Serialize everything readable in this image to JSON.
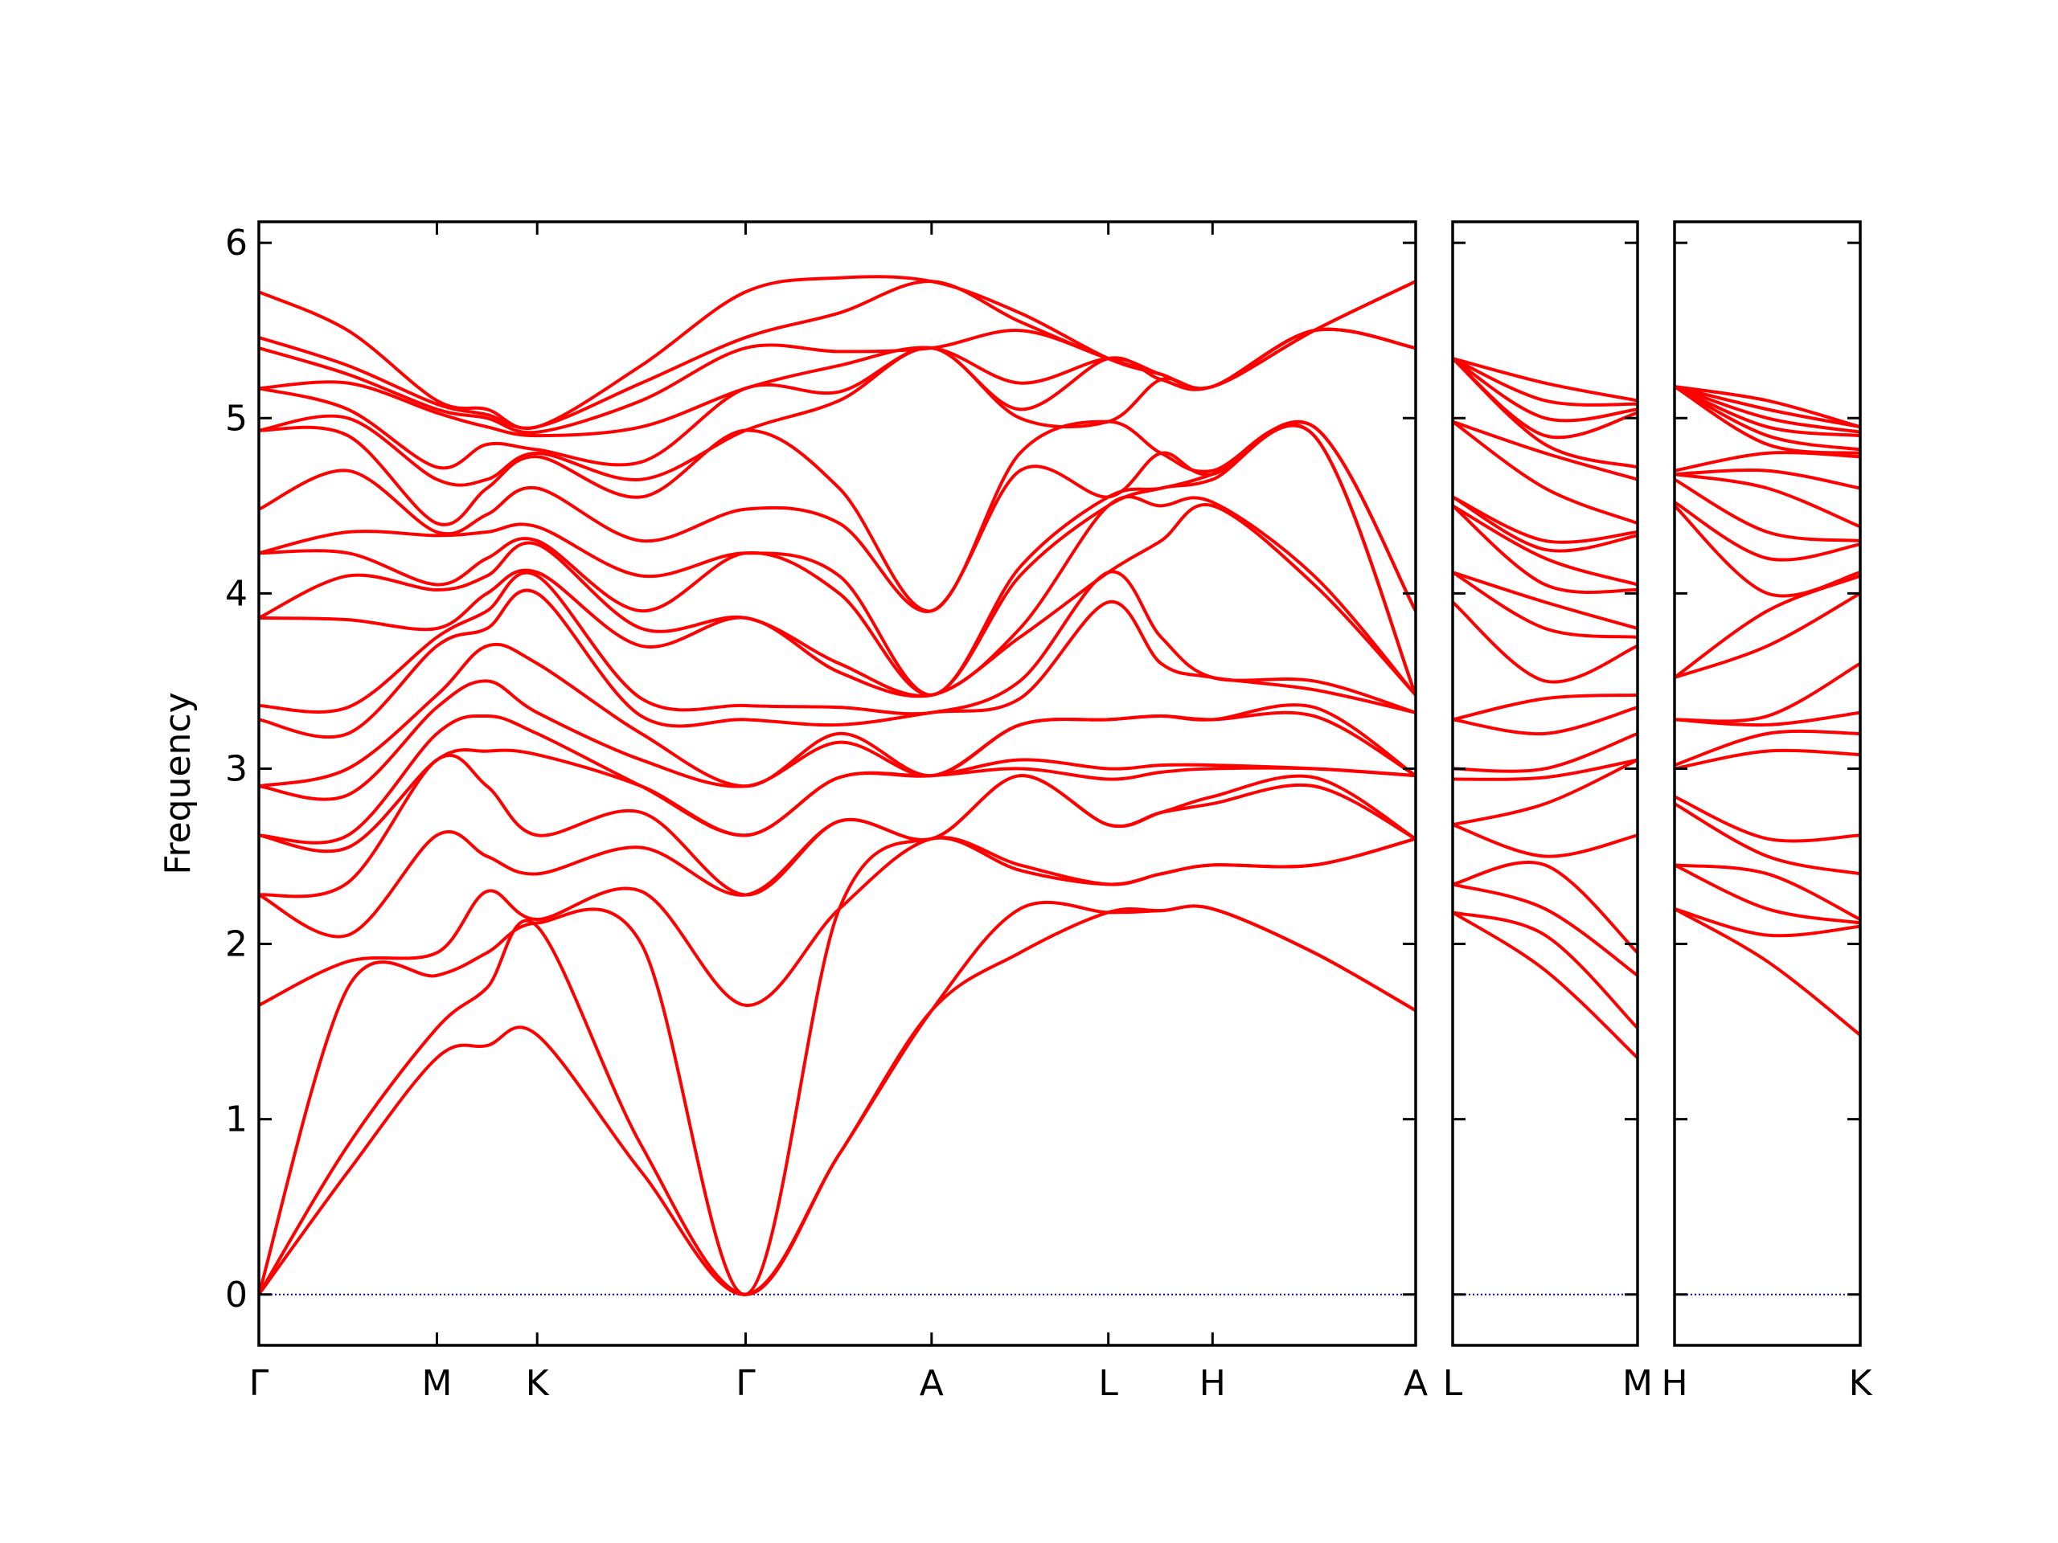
{
  "chart_data": [
    {
      "type": "line",
      "ylabel": "Frequency",
      "color": "#ff0000",
      "zero_line_color": "#0000cc",
      "x": [
        0,
        0.675,
        1.35,
        1.73,
        2.11,
        2.9,
        3.69,
        4.4,
        5.1,
        5.77,
        6.44,
        6.84,
        7.23,
        8.0,
        8.77
      ],
      "xlim": [
        0,
        8.77
      ],
      "xticks": [
        {
          "value": 0,
          "label": "Γ"
        },
        {
          "value": 1.35,
          "label": "M"
        },
        {
          "value": 2.11,
          "label": "K"
        },
        {
          "value": 3.69,
          "label": "Γ"
        },
        {
          "value": 5.1,
          "label": "A"
        },
        {
          "value": 6.44,
          "label": "L"
        },
        {
          "value": 7.23,
          "label": "H"
        },
        {
          "value": 8.77,
          "label": "A"
        }
      ],
      "ylim": [
        -0.29,
        6.12
      ],
      "yticks": [
        0,
        1,
        2,
        3,
        4,
        5,
        6
      ],
      "series": [
        {
          "values": [
            0,
            0.7,
            1.35,
            1.42,
            1.48,
            0.7,
            0,
            0.8,
            1.62,
            1.95,
            2.18,
            2.19,
            2.2,
            1.95,
            1.62
          ]
        },
        {
          "values": [
            0,
            0.85,
            1.52,
            1.75,
            2.1,
            0.85,
            0,
            0.8,
            1.62,
            2.2,
            2.18,
            2.19,
            2.2,
            1.95,
            1.62
          ]
        },
        {
          "values": [
            0,
            1.75,
            1.82,
            1.95,
            2.12,
            2.0,
            0,
            2.2,
            2.6,
            2.42,
            2.34,
            2.4,
            2.45,
            2.45,
            2.6
          ]
        },
        {
          "values": [
            1.65,
            1.9,
            1.95,
            2.3,
            2.14,
            2.3,
            1.65,
            2.2,
            2.6,
            2.45,
            2.34,
            2.4,
            2.45,
            2.45,
            2.6
          ]
        },
        {
          "values": [
            2.28,
            2.05,
            2.62,
            2.5,
            2.4,
            2.55,
            2.28,
            2.7,
            2.6,
            2.96,
            2.68,
            2.75,
            2.8,
            2.9,
            2.6
          ]
        },
        {
          "values": [
            2.28,
            2.35,
            3.05,
            2.9,
            2.62,
            2.75,
            2.28,
            2.7,
            2.6,
            2.96,
            2.68,
            2.75,
            2.84,
            2.95,
            2.6
          ]
        },
        {
          "values": [
            2.62,
            2.55,
            3.05,
            3.1,
            3.08,
            2.9,
            2.62,
            2.95,
            2.96,
            3.0,
            2.94,
            2.98,
            3.0,
            3.0,
            2.96
          ]
        },
        {
          "values": [
            2.62,
            2.62,
            3.2,
            3.3,
            3.2,
            2.9,
            2.62,
            2.95,
            2.96,
            3.05,
            3.0,
            3.02,
            3.02,
            3.0,
            2.96
          ]
        },
        {
          "values": [
            2.9,
            2.85,
            3.35,
            3.5,
            3.32,
            3.05,
            2.9,
            3.15,
            2.96,
            3.25,
            3.28,
            3.3,
            3.28,
            3.3,
            2.96
          ]
        },
        {
          "values": [
            2.9,
            3.0,
            3.42,
            3.7,
            3.6,
            3.2,
            2.9,
            3.2,
            2.96,
            3.25,
            3.28,
            3.3,
            3.28,
            3.35,
            2.96
          ]
        },
        {
          "values": [
            3.28,
            3.2,
            3.7,
            3.8,
            4.0,
            3.3,
            3.28,
            3.25,
            3.32,
            3.4,
            3.95,
            3.6,
            3.52,
            3.45,
            3.32
          ]
        },
        {
          "values": [
            3.36,
            3.35,
            3.75,
            3.9,
            4.1,
            3.4,
            3.36,
            3.35,
            3.32,
            3.5,
            4.12,
            3.75,
            3.52,
            3.5,
            3.32
          ]
        },
        {
          "values": [
            3.86,
            3.85,
            3.8,
            4.0,
            4.12,
            3.7,
            3.86,
            3.55,
            3.42,
            3.75,
            4.12,
            4.3,
            4.5,
            4.05,
            3.42
          ]
        },
        {
          "values": [
            3.86,
            4.1,
            4.02,
            4.1,
            4.28,
            3.8,
            3.86,
            3.6,
            3.42,
            3.8,
            4.5,
            4.5,
            4.52,
            4.1,
            3.42
          ]
        },
        {
          "values": [
            4.23,
            4.23,
            4.05,
            4.2,
            4.3,
            3.9,
            4.23,
            4.0,
            3.42,
            4.1,
            4.5,
            4.6,
            4.65,
            4.9,
            3.42
          ]
        },
        {
          "values": [
            4.23,
            4.35,
            4.33,
            4.35,
            4.38,
            4.1,
            4.23,
            4.1,
            3.42,
            4.15,
            4.55,
            4.6,
            4.68,
            4.9,
            3.42
          ]
        },
        {
          "values": [
            4.48,
            4.7,
            4.35,
            4.45,
            4.6,
            4.3,
            4.48,
            4.4,
            3.9,
            4.7,
            4.55,
            4.8,
            4.68,
            4.95,
            3.9
          ]
        },
        {
          "values": [
            4.93,
            4.9,
            4.4,
            4.6,
            4.78,
            4.55,
            4.93,
            4.6,
            3.9,
            4.8,
            4.98,
            4.8,
            4.7,
            4.95,
            3.9
          ]
        },
        {
          "values": [
            4.93,
            5.0,
            4.65,
            4.65,
            4.8,
            4.65,
            4.93,
            5.1,
            5.4,
            5.0,
            4.98,
            5.22,
            5.18,
            5.5,
            5.4
          ]
        },
        {
          "values": [
            5.17,
            5.05,
            4.72,
            4.85,
            4.82,
            4.75,
            5.17,
            5.15,
            5.4,
            5.05,
            5.34,
            5.22,
            5.18,
            5.5,
            5.4
          ]
        },
        {
          "values": [
            5.17,
            5.2,
            5.03,
            4.95,
            4.9,
            4.95,
            5.17,
            5.3,
            5.4,
            5.2,
            5.34,
            5.25,
            5.18,
            5.5,
            5.4
          ]
        },
        {
          "values": [
            5.4,
            5.25,
            5.05,
            5.0,
            4.92,
            5.1,
            5.4,
            5.38,
            5.4,
            5.5,
            5.34,
            5.25,
            5.18,
            5.5,
            5.4
          ]
        },
        {
          "values": [
            5.46,
            5.3,
            5.08,
            5.02,
            4.95,
            5.2,
            5.46,
            5.6,
            5.78,
            5.55,
            5.34,
            5.25,
            5.18,
            5.5,
            5.78
          ]
        },
        {
          "values": [
            5.72,
            5.5,
            5.1,
            5.05,
            4.95,
            5.3,
            5.72,
            5.8,
            5.78,
            5.6,
            5.34,
            5.25,
            5.18,
            5.5,
            5.78
          ]
        }
      ]
    },
    {
      "type": "line",
      "color": "#ff0000",
      "zero_line_color": "#0000cc",
      "x": [
        0,
        0.7,
        1.4
      ],
      "xlim": [
        0,
        1.4
      ],
      "xticks": [
        {
          "value": 0,
          "label": "L"
        },
        {
          "value": 1.4,
          "label": "M"
        }
      ],
      "ylim": [
        -0.29,
        6.12
      ],
      "yticks": [
        0,
        1,
        2,
        3,
        4,
        5,
        6
      ],
      "series": [
        {
          "values": [
            2.18,
            1.85,
            1.35
          ]
        },
        {
          "values": [
            2.18,
            2.05,
            1.52
          ]
        },
        {
          "values": [
            2.34,
            2.2,
            1.82
          ]
        },
        {
          "values": [
            2.34,
            2.45,
            1.95
          ]
        },
        {
          "values": [
            2.68,
            2.5,
            2.62
          ]
        },
        {
          "values": [
            2.68,
            2.8,
            3.05
          ]
        },
        {
          "values": [
            2.94,
            2.95,
            3.05
          ]
        },
        {
          "values": [
            3.0,
            3.0,
            3.2
          ]
        },
        {
          "values": [
            3.28,
            3.2,
            3.35
          ]
        },
        {
          "values": [
            3.28,
            3.4,
            3.42
          ]
        },
        {
          "values": [
            3.95,
            3.5,
            3.7
          ]
        },
        {
          "values": [
            4.12,
            3.8,
            3.75
          ]
        },
        {
          "values": [
            4.12,
            3.95,
            3.8
          ]
        },
        {
          "values": [
            4.5,
            4.05,
            4.02
          ]
        },
        {
          "values": [
            4.5,
            4.2,
            4.05
          ]
        },
        {
          "values": [
            4.55,
            4.25,
            4.33
          ]
        },
        {
          "values": [
            4.55,
            4.3,
            4.35
          ]
        },
        {
          "values": [
            4.98,
            4.6,
            4.4
          ]
        },
        {
          "values": [
            4.98,
            4.8,
            4.65
          ]
        },
        {
          "values": [
            5.34,
            4.85,
            4.72
          ]
        },
        {
          "values": [
            5.34,
            4.9,
            5.03
          ]
        },
        {
          "values": [
            5.34,
            5.0,
            5.05
          ]
        },
        {
          "values": [
            5.34,
            5.1,
            5.08
          ]
        },
        {
          "values": [
            5.34,
            5.2,
            5.1
          ]
        }
      ]
    },
    {
      "type": "line",
      "color": "#ff0000",
      "zero_line_color": "#0000cc",
      "x": [
        0,
        0.705,
        1.41
      ],
      "xlim": [
        0,
        1.41
      ],
      "xticks": [
        {
          "value": 0,
          "label": "H"
        },
        {
          "value": 1.41,
          "label": "K"
        }
      ],
      "ylim": [
        -0.29,
        6.12
      ],
      "yticks": [
        0,
        1,
        2,
        3,
        4,
        5,
        6
      ],
      "series": [
        {
          "values": [
            2.2,
            1.9,
            1.48
          ]
        },
        {
          "values": [
            2.2,
            2.05,
            2.1
          ]
        },
        {
          "values": [
            2.45,
            2.2,
            2.12
          ]
        },
        {
          "values": [
            2.45,
            2.4,
            2.14
          ]
        },
        {
          "values": [
            2.8,
            2.5,
            2.4
          ]
        },
        {
          "values": [
            2.84,
            2.6,
            2.62
          ]
        },
        {
          "values": [
            3.0,
            3.1,
            3.08
          ]
        },
        {
          "values": [
            3.02,
            3.2,
            3.2
          ]
        },
        {
          "values": [
            3.28,
            3.25,
            3.32
          ]
        },
        {
          "values": [
            3.28,
            3.3,
            3.6
          ]
        },
        {
          "values": [
            3.52,
            3.7,
            4.0
          ]
        },
        {
          "values": [
            3.52,
            3.9,
            4.1
          ]
        },
        {
          "values": [
            4.5,
            4.0,
            4.12
          ]
        },
        {
          "values": [
            4.52,
            4.2,
            4.28
          ]
        },
        {
          "values": [
            4.65,
            4.35,
            4.3
          ]
        },
        {
          "values": [
            4.68,
            4.6,
            4.38
          ]
        },
        {
          "values": [
            4.68,
            4.7,
            4.6
          ]
        },
        {
          "values": [
            4.7,
            4.8,
            4.78
          ]
        },
        {
          "values": [
            5.18,
            4.85,
            4.8
          ]
        },
        {
          "values": [
            5.18,
            4.9,
            4.82
          ]
        },
        {
          "values": [
            5.18,
            4.95,
            4.9
          ]
        },
        {
          "values": [
            5.18,
            5.0,
            4.92
          ]
        },
        {
          "values": [
            5.18,
            5.05,
            4.95
          ]
        },
        {
          "values": [
            5.18,
            5.1,
            4.95
          ]
        }
      ]
    }
  ]
}
